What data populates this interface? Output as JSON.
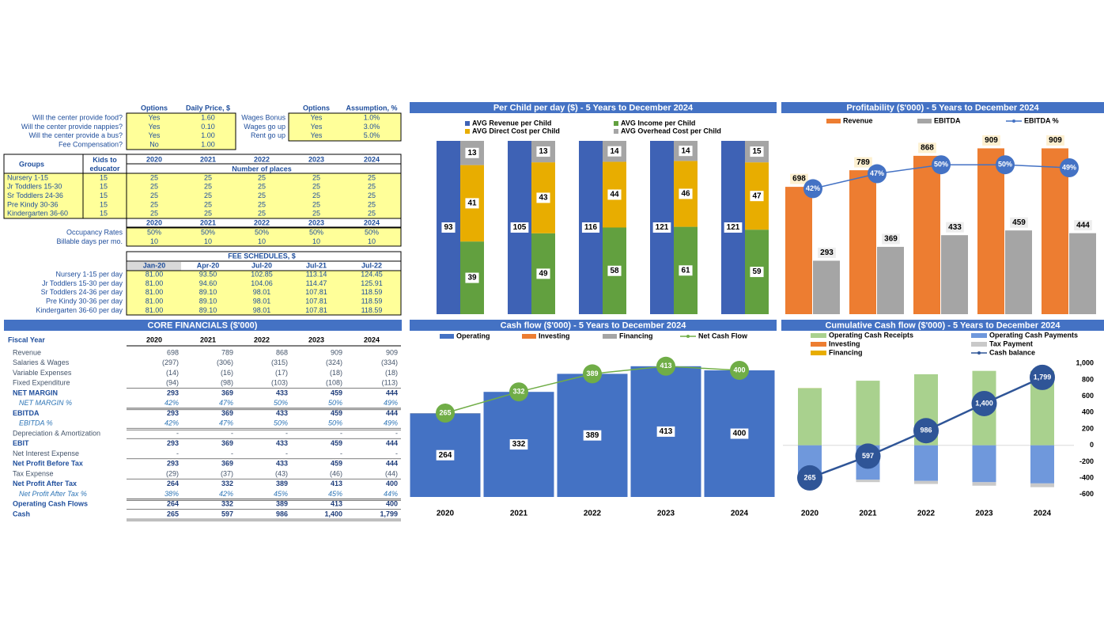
{
  "assumptions": {
    "headers": [
      "Options",
      "Daily Price, $"
    ],
    "rows": [
      [
        "Will the center provide food?",
        "Yes",
        "1.60"
      ],
      [
        "Will the center provide nappies?",
        "Yes",
        "0.10"
      ],
      [
        "Will the center provide a bus?",
        "Yes",
        "1.00"
      ],
      [
        "Fee Compensation?",
        "No",
        "1.00"
      ]
    ]
  },
  "assumptions_2": {
    "headers": [
      "Options",
      "Assumption, %"
    ],
    "rows": [
      [
        "Wages Bonus",
        "Yes",
        "1.0%"
      ],
      [
        "Wages go up",
        "Yes",
        "3.0%"
      ],
      [
        "Rent go up",
        "Yes",
        "5.0%"
      ]
    ]
  },
  "places": {
    "headers": [
      "Groups",
      "Kids to educator",
      "2020",
      "2021",
      "2022",
      "2023",
      "2024"
    ],
    "subheader": "Number of places",
    "rows": [
      [
        "Nursery 1-15",
        "15",
        "25",
        "25",
        "25",
        "25",
        "25"
      ],
      [
        "Jr Toddlers 15-30",
        "15",
        "25",
        "25",
        "25",
        "25",
        "25"
      ],
      [
        "Sr Toddlers 24-36",
        "15",
        "25",
        "25",
        "25",
        "25",
        "25"
      ],
      [
        "Pre Kindy 30-36",
        "15",
        "25",
        "25",
        "25",
        "25",
        "25"
      ],
      [
        "Kindergarten 36-60",
        "15",
        "25",
        "25",
        "25",
        "25",
        "25"
      ]
    ]
  },
  "occupancy": {
    "years": [
      "2020",
      "2021",
      "2022",
      "2023",
      "2024"
    ],
    "rows": [
      [
        "Occupancy Rates",
        "50%",
        "50%",
        "50%",
        "50%",
        "50%"
      ],
      [
        "Billable days per mo.",
        "10",
        "10",
        "10",
        "10",
        "10"
      ]
    ]
  },
  "fees": {
    "title": "FEE SCHEDULES, $",
    "headers": [
      "Jan-20",
      "Apr-20",
      "Jul-20",
      "Jul-21",
      "Jul-22"
    ],
    "rows": [
      [
        "Nursery 1-15 per day",
        "81.00",
        "93.50",
        "102.85",
        "113.14",
        "124.45"
      ],
      [
        "Jr Toddlers 15-30 per day",
        "81.00",
        "94.60",
        "104.06",
        "114.47",
        "125.91"
      ],
      [
        "Sr Toddlers 24-36 per day",
        "81.00",
        "89.10",
        "98.01",
        "107.81",
        "118.59"
      ],
      [
        "Pre Kindy 30-36 per day",
        "81.00",
        "89.10",
        "98.01",
        "107.81",
        "118.59"
      ],
      [
        "Kindergarten 36-60 per day",
        "81.00",
        "89.10",
        "98.01",
        "107.81",
        "118.59"
      ]
    ]
  },
  "financials": {
    "title": "CORE FINANCIALS ($'000)",
    "headers": [
      "Fiscal Year",
      "2020",
      "2021",
      "2022",
      "2023",
      "2024"
    ],
    "rows": [
      [
        "Revenue",
        "698",
        "789",
        "868",
        "909",
        "909"
      ],
      [
        "Salaries & Wages",
        "(297)",
        "(306)",
        "(315)",
        "(324)",
        "(334)"
      ],
      [
        "Variable Expenses",
        "(14)",
        "(16)",
        "(17)",
        "(18)",
        "(18)"
      ],
      [
        "Fixed Expenditure",
        "(94)",
        "(98)",
        "(103)",
        "(108)",
        "(113)"
      ],
      [
        "NET MARGIN",
        "293",
        "369",
        "433",
        "459",
        "444"
      ],
      [
        "NET MARGIN %",
        "42%",
        "47%",
        "50%",
        "50%",
        "49%"
      ],
      [
        "EBITDA",
        "293",
        "369",
        "433",
        "459",
        "444"
      ],
      [
        "EBITDA %",
        "42%",
        "47%",
        "50%",
        "50%",
        "49%"
      ],
      [
        "Depreciation & Amortization",
        "-",
        "-",
        "-",
        "-",
        "-"
      ],
      [
        "EBIT",
        "293",
        "369",
        "433",
        "459",
        "444"
      ],
      [
        "Net Interest Expense",
        "-",
        "-",
        "-",
        "-",
        "-"
      ],
      [
        "Net Profit Before Tax",
        "293",
        "369",
        "433",
        "459",
        "444"
      ],
      [
        "Tax Expense",
        "(29)",
        "(37)",
        "(43)",
        "(46)",
        "(44)"
      ],
      [
        "Net Profit After Tax",
        "264",
        "332",
        "389",
        "413",
        "400"
      ],
      [
        "Net Profit After Tax %",
        "38%",
        "42%",
        "45%",
        "45%",
        "44%"
      ],
      [
        "Operating Cash Flows",
        "264",
        "332",
        "389",
        "413",
        "400"
      ],
      [
        "Cash",
        "265",
        "597",
        "986",
        "1,400",
        "1,799"
      ]
    ]
  },
  "chart_data": [
    {
      "type": "stacked_bar",
      "stacked": "percent",
      "title": "Per Child per day ($) - 5 Years to December 2024",
      "series": [
        {
          "name": "AVG Revenue per Child",
          "color": "#3e62b5",
          "values": [
            93,
            105,
            116,
            121,
            121
          ]
        },
        {
          "name": "AVG Income per Child",
          "color": "#62a03f",
          "values": [
            39,
            49,
            58,
            61,
            59
          ]
        },
        {
          "name": "AVG Direct Cost per Child",
          "color": "#e8ad00",
          "values": [
            41,
            43,
            44,
            46,
            47
          ]
        },
        {
          "name": "AVG Overhead Cost per Child",
          "color": "#a5a5a5",
          "values": [
            13,
            13,
            14,
            14,
            15
          ]
        }
      ]
    },
    {
      "type": "bar_line",
      "title": "Profitability ($'000) - 5 Years to December 2024",
      "ylim": [
        0,
        950
      ],
      "y2lim": [
        0,
        58
      ],
      "series": [
        {
          "name": "Revenue",
          "color": "#ed7d31",
          "values": [
            698,
            789,
            868,
            909,
            909
          ],
          "data_labels": true
        },
        {
          "name": "EBITDA",
          "color": "#a5a5a5",
          "values": [
            293,
            369,
            433,
            459,
            444
          ],
          "data_labels": true
        },
        {
          "name": "EBITDA %",
          "color": "#4472c4",
          "type": "line",
          "axis": "y2",
          "values": [
            42,
            47,
            50,
            50,
            49
          ],
          "value_labels": [
            "42%",
            "47%",
            "50%",
            "50%",
            "49%"
          ],
          "data_labels": true
        }
      ]
    },
    {
      "type": "stacked_bar_line",
      "title": "Cash flow ($'000) - 5 Years to December 2024",
      "categories": [
        "2020",
        "2021",
        "2022",
        "2023",
        "2024"
      ],
      "ylim": [
        0,
        490
      ],
      "series": [
        {
          "name": "Operating",
          "color": "#4472c4",
          "values": [
            264,
            332,
            389,
            413,
            400
          ],
          "data_labels": true
        },
        {
          "name": "Investing",
          "color": "#ed7d31",
          "values": [
            0,
            0,
            0,
            0,
            0
          ]
        },
        {
          "name": "Financing",
          "color": "#a5a5a5",
          "values": [
            1,
            0,
            0,
            0,
            0
          ],
          "data_labels": true
        },
        {
          "name": "Net Cash Flow",
          "color": "#70ad47",
          "type": "line",
          "values": [
            265,
            332,
            389,
            413,
            400
          ],
          "data_labels": true
        }
      ]
    },
    {
      "type": "stacked_bar_line",
      "title": "Cumulative Cash flow ($'000) - 5 Years to December 2024",
      "categories": [
        "2020",
        "2021",
        "2022",
        "2023",
        "2024"
      ],
      "ylim": [
        -650,
        1070
      ],
      "yticks": [
        {
          "value": 1000,
          "label": "1,000"
        },
        800,
        600,
        400,
        200,
        0,
        -200,
        -400,
        -600
      ],
      "y2lim": [
        -50,
        2100
      ],
      "series": [
        {
          "name": "Operating Cash Receipts",
          "color": "#a9d18e",
          "values": [
            698,
            789,
            868,
            909,
            909
          ]
        },
        {
          "name": "Operating Cash Payments",
          "color": "#6f98dc",
          "values": [
            -405,
            -420,
            -435,
            -450,
            -465
          ]
        },
        {
          "name": "Investing",
          "color": "#ed7d31",
          "values": [
            0,
            0,
            0,
            0,
            0
          ]
        },
        {
          "name": "Tax Payment",
          "color": "#c9c9c9",
          "values": [
            0,
            -29,
            -37,
            -43,
            -46
          ]
        },
        {
          "name": "Financing",
          "color": "#e8ad00",
          "values": [
            1,
            0,
            0,
            0,
            0
          ]
        },
        {
          "name": "Cash balance",
          "color": "#2f5597",
          "type": "line",
          "axis": "y2",
          "values": [
            265,
            597,
            986,
            1400,
            1799
          ],
          "value_labels": [
            "265",
            "597",
            "986",
            "1,400",
            "1,799"
          ],
          "data_labels": true
        }
      ]
    }
  ]
}
